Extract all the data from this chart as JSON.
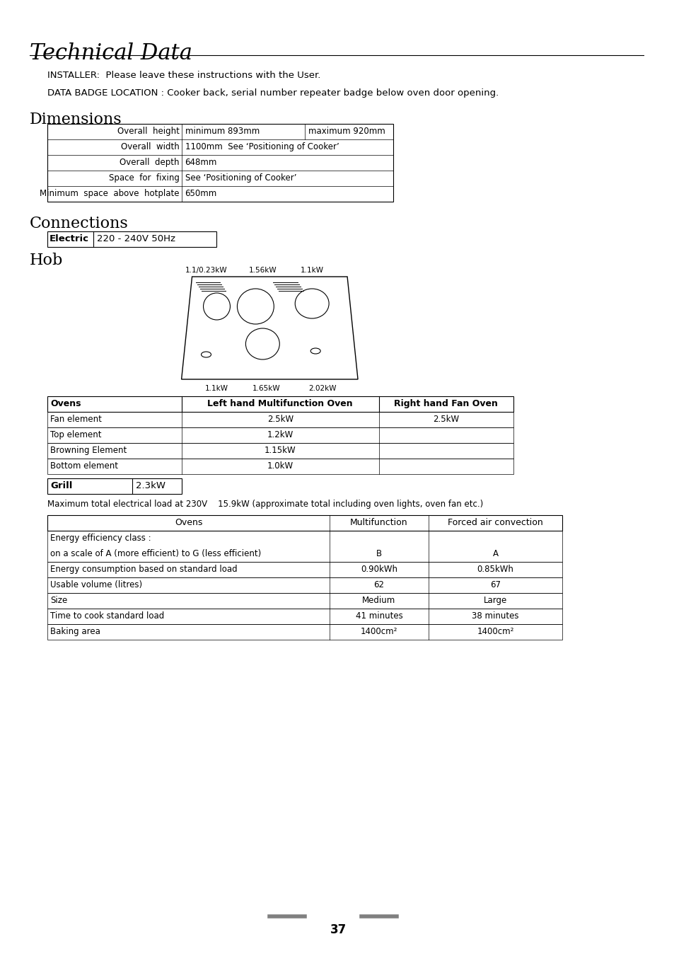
{
  "title": "Technical Data",
  "page_number": "37",
  "installer_text": "INSTALLER:  Please leave these instructions with the User.",
  "data_badge_text": "DATA BADGE LOCATION : Cooker back, serial number repeater badge below oven door opening.",
  "section_dimensions": "Dimensions",
  "section_connections": "Connections",
  "section_hob": "Hob",
  "dimensions_table": [
    [
      "Overall  height",
      "minimum 893mm",
      "maximum 920mm"
    ],
    [
      "Overall  width",
      "1100mm  See ‘Positioning of Cooker’",
      ""
    ],
    [
      "Overall  depth",
      "648mm",
      ""
    ],
    [
      "Space  for  fixing",
      "See ‘Positioning of Cooker’",
      ""
    ],
    [
      "Minimum  space  above  hotplate",
      "650mm",
      ""
    ]
  ],
  "connections_label": "Electric",
  "connections_value": "220 - 240V 50Hz",
  "hob_labels_top": [
    "1.1/0.23kW",
    "1.56kW",
    "1.1kW"
  ],
  "hob_labels_bottom": [
    "1.1kW",
    "1.65kW",
    "2.02kW"
  ],
  "ovens_table_headers": [
    "Ovens",
    "Left hand Multifunction Oven",
    "Right hand Fan Oven"
  ],
  "ovens_table_rows": [
    [
      "Fan element",
      "2.5kW",
      "2.5kW"
    ],
    [
      "Top element",
      "1.2kW",
      ""
    ],
    [
      "Browning Element",
      "1.15kW",
      ""
    ],
    [
      "Bottom element",
      "1.0kW",
      ""
    ]
  ],
  "grill_label": "Grill",
  "grill_value": "2.3kW",
  "max_load_text": "Maximum total electrical load at 230V    15.9kW (approximate total including oven lights, oven fan etc.)",
  "energy_table_headers": [
    "Ovens",
    "Multifunction",
    "Forced air convection"
  ],
  "energy_table_rows": [
    [
      "Energy efficiency class :",
      "",
      ""
    ],
    [
      "on a scale of A (more efficient) to G (less efficient)",
      "B",
      "A"
    ],
    [
      "Energy consumption based on standard load",
      "0.90kWh",
      "0.85kWh"
    ],
    [
      "Usable volume (litres)",
      "62",
      "67"
    ],
    [
      "Size",
      "Medium",
      "Large"
    ],
    [
      "Time to cook standard load",
      "41 minutes",
      "38 minutes"
    ],
    [
      "Baking area",
      "1400cm²",
      "1400cm²"
    ]
  ],
  "background_color": "#ffffff",
  "text_color": "#000000",
  "line_color": "#000000",
  "gray_color": "#808080"
}
